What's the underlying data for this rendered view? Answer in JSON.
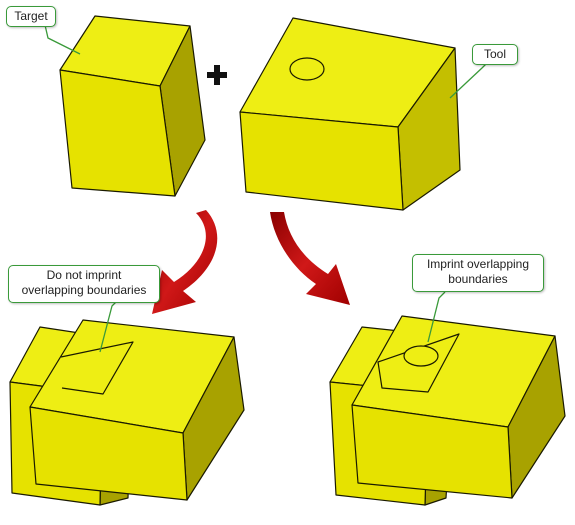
{
  "callouts": {
    "target": "Target",
    "tool": "Tool",
    "no_imprint_line1": "Do not imprint",
    "no_imprint_line2": "overlapping boundaries",
    "imprint_line1": "Imprint overlapping",
    "imprint_line2": "boundaries"
  },
  "colors": {
    "face_front": "#e6e200",
    "face_top": "#eeee14",
    "face_side": "#a8a200",
    "face_side_light": "#c4bf00",
    "edge": "#1a1a00",
    "arrow": "#c01010",
    "callout_border": "#3a9a3a"
  },
  "icons": [
    "plus-icon",
    "curved-arrow-icon"
  ]
}
